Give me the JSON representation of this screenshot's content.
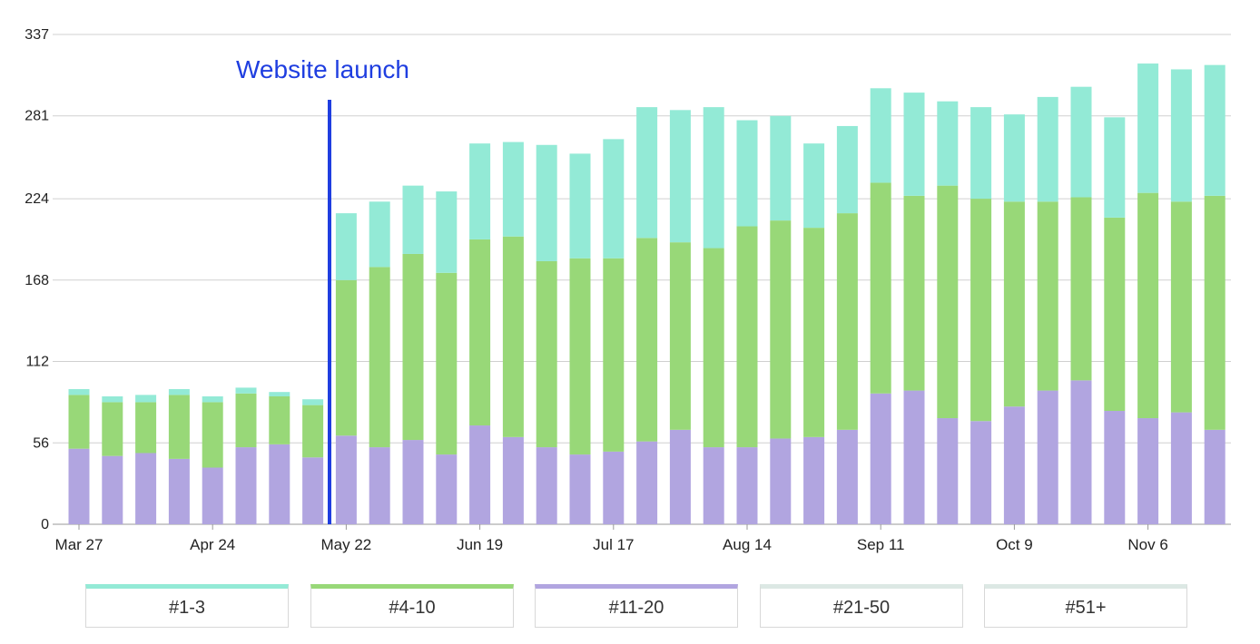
{
  "chart_data": {
    "type": "bar",
    "stacked": true,
    "title": "",
    "xlabel": "",
    "ylabel": "",
    "ylim": [
      0,
      337
    ],
    "y_ticks": [
      0,
      56,
      112,
      168,
      224,
      281,
      337
    ],
    "x_tick_labels": [
      {
        "index": 0,
        "label": "Mar 27"
      },
      {
        "index": 4,
        "label": "Apr 24"
      },
      {
        "index": 8,
        "label": "May 22"
      },
      {
        "index": 12,
        "label": "Jun 19"
      },
      {
        "index": 16,
        "label": "Jul 17"
      },
      {
        "index": 20,
        "label": "Aug 14"
      },
      {
        "index": 24,
        "label": "Sep 11"
      },
      {
        "index": 28,
        "label": "Oct 9"
      },
      {
        "index": 32,
        "label": "Nov 6"
      }
    ],
    "grid": true,
    "legend_placement": "bottom",
    "annotation": {
      "text": "Website launch",
      "after_index": 7,
      "color": "#1f3ee0"
    },
    "series": [
      {
        "name": "#11-20",
        "color": "#b1a5e0",
        "values": [
          52,
          47,
          49,
          45,
          39,
          53,
          55,
          46,
          61,
          53,
          58,
          48,
          68,
          60,
          53,
          48,
          50,
          57,
          65,
          53,
          53,
          59,
          60,
          65,
          90,
          92,
          73,
          71,
          81,
          92,
          99,
          78,
          73,
          77,
          65
        ]
      },
      {
        "name": "#4-10",
        "color": "#98d878",
        "values": [
          37,
          37,
          35,
          44,
          45,
          37,
          33,
          36,
          107,
          124,
          128,
          125,
          128,
          138,
          128,
          135,
          133,
          140,
          129,
          137,
          152,
          150,
          144,
          149,
          145,
          134,
          160,
          153,
          141,
          130,
          126,
          133,
          155,
          145,
          161
        ]
      },
      {
        "name": "#1-3",
        "color": "#93ead6",
        "values": [
          4,
          4,
          5,
          4,
          4,
          4,
          3,
          4,
          46,
          45,
          47,
          56,
          66,
          65,
          80,
          72,
          82,
          90,
          91,
          97,
          73,
          72,
          58,
          60,
          65,
          71,
          58,
          63,
          60,
          72,
          76,
          69,
          89,
          91,
          90
        ]
      },
      {
        "name": "#21-50",
        "color": "#dce8e4",
        "values": []
      },
      {
        "name": "#51+",
        "color": "#dce8e4",
        "values": []
      }
    ]
  }
}
